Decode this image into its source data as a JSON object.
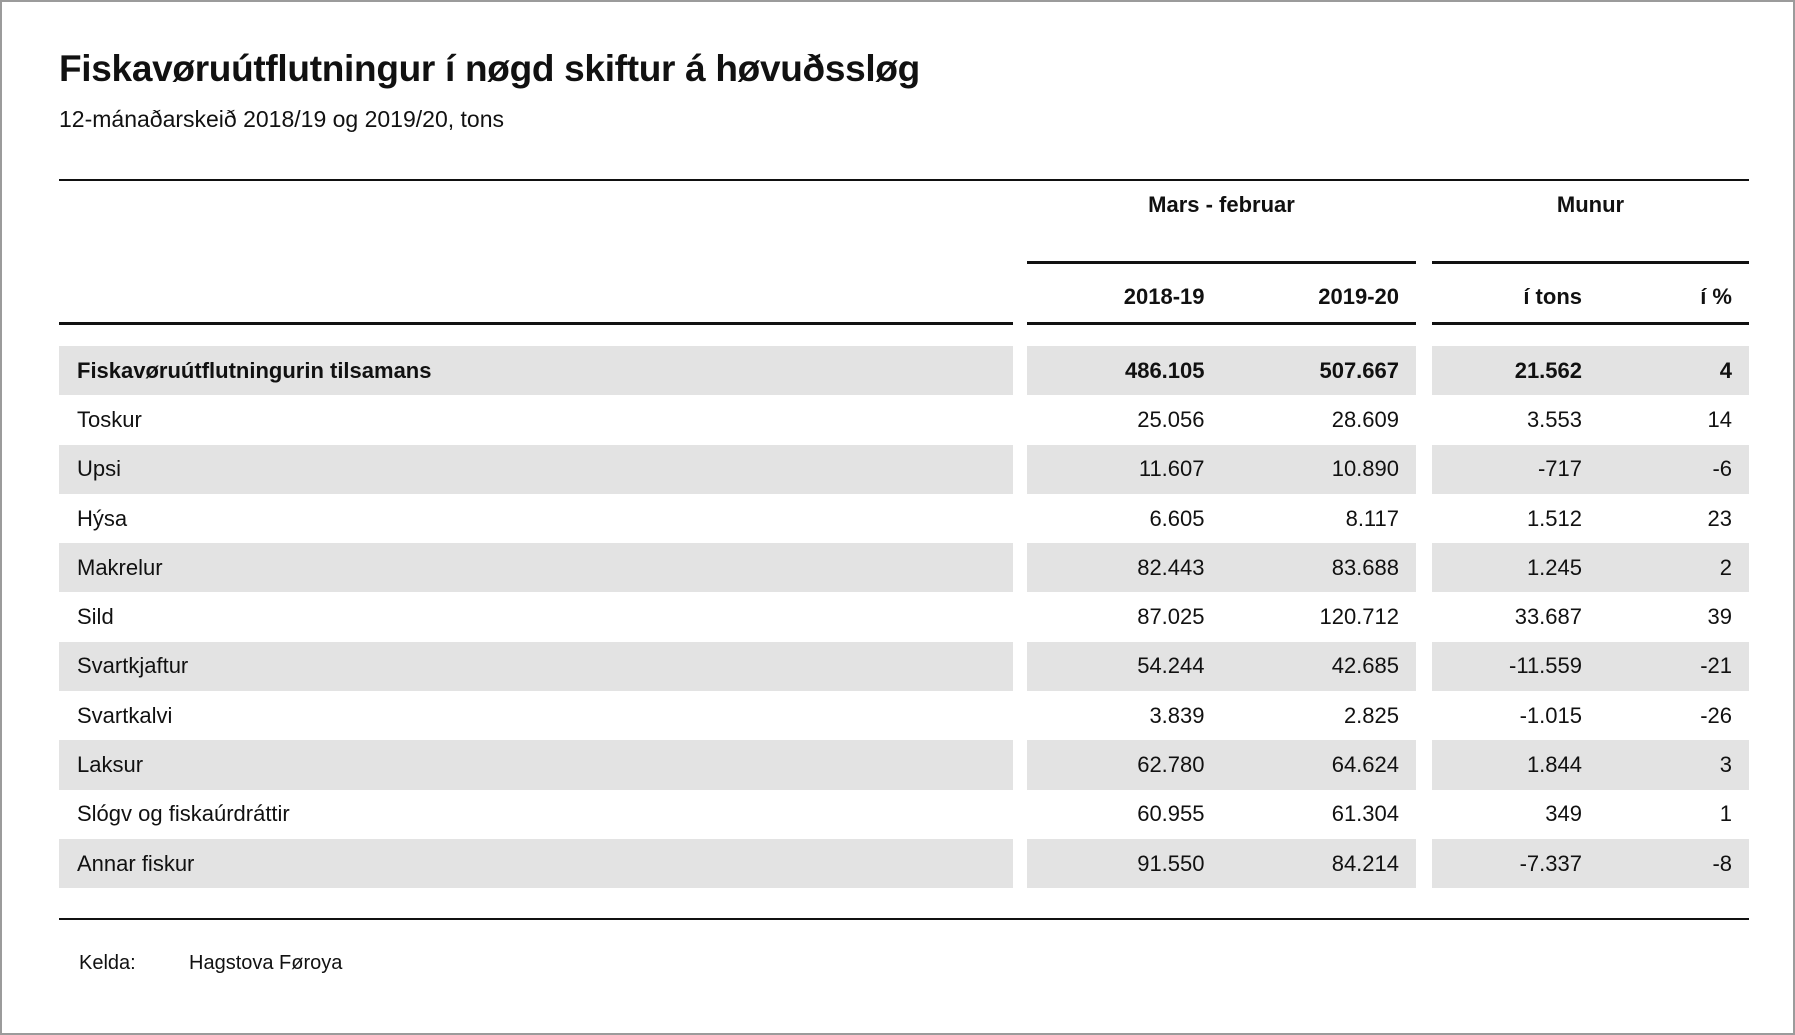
{
  "page": {
    "title": "Fiskavøruútflutningur í nøgd skiftur á høvuðssløg",
    "subtitle": "12-mánaðarskeið 2018/19 og 2019/20, tons"
  },
  "table": {
    "group_headers": [
      {
        "label": "Mars - februar"
      },
      {
        "label": "Munur"
      }
    ],
    "column_headers": [
      "2018-19",
      "2019-20",
      "í tons",
      "í %"
    ],
    "rows": [
      {
        "label": "Fiskavøruútflutningurin tilsamans",
        "values": [
          "486.105",
          "507.667",
          "21.562",
          "4"
        ],
        "bold": true,
        "striped": true
      },
      {
        "label": "Toskur",
        "values": [
          "25.056",
          "28.609",
          "3.553",
          "14"
        ],
        "bold": false,
        "striped": false
      },
      {
        "label": "Upsi",
        "values": [
          "11.607",
          "10.890",
          "-717",
          "-6"
        ],
        "bold": false,
        "striped": true
      },
      {
        "label": "Hýsa",
        "values": [
          "6.605",
          "8.117",
          "1.512",
          "23"
        ],
        "bold": false,
        "striped": false
      },
      {
        "label": "Makrelur",
        "values": [
          "82.443",
          "83.688",
          "1.245",
          "2"
        ],
        "bold": false,
        "striped": true
      },
      {
        "label": "Sild",
        "values": [
          "87.025",
          "120.712",
          "33.687",
          "39"
        ],
        "bold": false,
        "striped": false
      },
      {
        "label": "Svartkjaftur",
        "values": [
          "54.244",
          "42.685",
          "-11.559",
          "-21"
        ],
        "bold": false,
        "striped": true
      },
      {
        "label": "Svartkalvi",
        "values": [
          "3.839",
          "2.825",
          "-1.015",
          "-26"
        ],
        "bold": false,
        "striped": false
      },
      {
        "label": "Laksur",
        "values": [
          "62.780",
          "64.624",
          "1.844",
          "3"
        ],
        "bold": false,
        "striped": true
      },
      {
        "label": "Slógv og fiskaúrdráttir",
        "values": [
          "60.955",
          "61.304",
          "349",
          "1"
        ],
        "bold": false,
        "striped": false
      },
      {
        "label": "Annar fiskur",
        "values": [
          "91.550",
          "84.214",
          "-7.337",
          "-8"
        ],
        "bold": false,
        "striped": true
      }
    ]
  },
  "footer": {
    "source_label": "Kelda:",
    "source_value": "Hagstova Føroya"
  },
  "colors": {
    "stripe": "#e3e3e3",
    "text": "#111111",
    "rule": "#111111",
    "page_border": "#9b9b9b"
  },
  "chart_data": {
    "type": "table",
    "title": "Fiskavøruútflutningur í nøgd skiftur á høvuðssløg",
    "subtitle": "12-mánaðarskeið 2018/19 og 2019/20, tons",
    "column_groups": [
      {
        "label": "Mars - februar",
        "columns": [
          "2018-19",
          "2019-20"
        ]
      },
      {
        "label": "Munur",
        "columns": [
          "í tons",
          "í %"
        ]
      }
    ],
    "unit": "tons",
    "rows": [
      {
        "category": "Fiskavøruútflutningurin tilsamans",
        "y2018_19": 486105,
        "y2019_20": 507667,
        "diff_tons": 21562,
        "diff_pct": 4
      },
      {
        "category": "Toskur",
        "y2018_19": 25056,
        "y2019_20": 28609,
        "diff_tons": 3553,
        "diff_pct": 14
      },
      {
        "category": "Upsi",
        "y2018_19": 11607,
        "y2019_20": 10890,
        "diff_tons": -717,
        "diff_pct": -6
      },
      {
        "category": "Hýsa",
        "y2018_19": 6605,
        "y2019_20": 8117,
        "diff_tons": 1512,
        "diff_pct": 23
      },
      {
        "category": "Makrelur",
        "y2018_19": 82443,
        "y2019_20": 83688,
        "diff_tons": 1245,
        "diff_pct": 2
      },
      {
        "category": "Sild",
        "y2018_19": 87025,
        "y2019_20": 120712,
        "diff_tons": 33687,
        "diff_pct": 39
      },
      {
        "category": "Svartkjaftur",
        "y2018_19": 54244,
        "y2019_20": 42685,
        "diff_tons": -11559,
        "diff_pct": -21
      },
      {
        "category": "Svartkalvi",
        "y2018_19": 3839,
        "y2019_20": 2825,
        "diff_tons": -1015,
        "diff_pct": -26
      },
      {
        "category": "Laksur",
        "y2018_19": 62780,
        "y2019_20": 64624,
        "diff_tons": 1844,
        "diff_pct": 3
      },
      {
        "category": "Slógv og fiskaúrdráttir",
        "y2018_19": 60955,
        "y2019_20": 61304,
        "diff_tons": 349,
        "diff_pct": 1
      },
      {
        "category": "Annar fiskur",
        "y2018_19": 91550,
        "y2019_20": 84214,
        "diff_tons": -7337,
        "diff_pct": -8
      }
    ],
    "source": "Hagstova Føroya"
  }
}
